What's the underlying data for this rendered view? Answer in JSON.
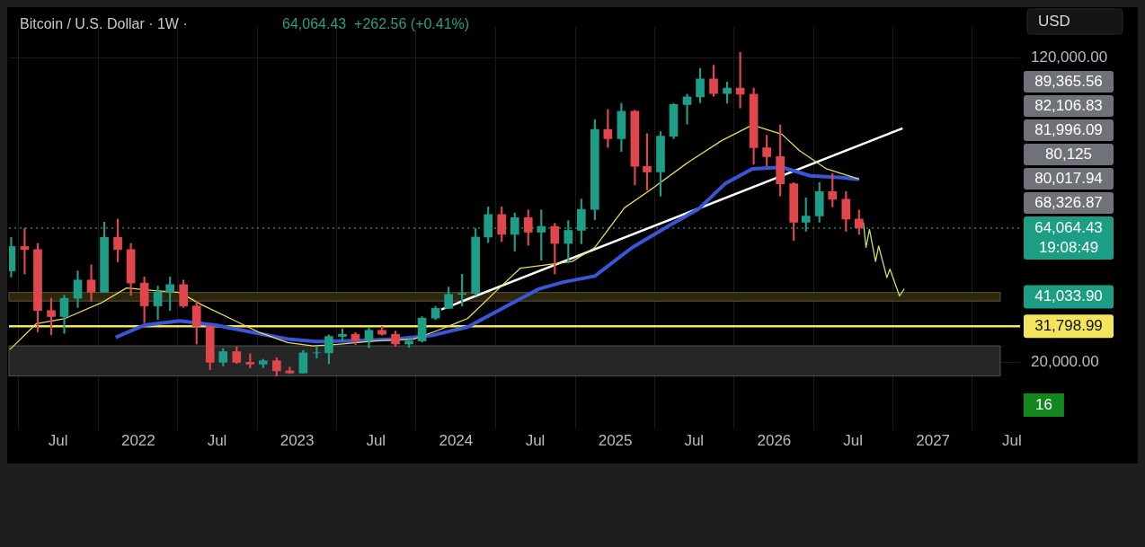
{
  "chart_data": {
    "type": "candlestick",
    "title": "Bitcoin / U.S. Dollar · 1W ·",
    "subtitle": "64,064.43  +262.56 (+0.41%)",
    "x": [
      "2021-03-15",
      "2021-04-15",
      "2021-05-15",
      "2021-06-15",
      "2021-07-15",
      "2021-08-15",
      "2021-09-15",
      "2021-10-15",
      "2021-11-15",
      "2021-12-15",
      "2022-01-15",
      "2022-02-15",
      "2022-03-15",
      "2022-04-15",
      "2022-05-15",
      "2022-06-15",
      "2022-07-15",
      "2022-08-15",
      "2022-09-15",
      "2022-10-15",
      "2022-11-15",
      "2022-12-15",
      "2023-01-15",
      "2023-02-15",
      "2023-03-15",
      "2023-04-15",
      "2023-05-15",
      "2023-06-15",
      "2023-07-15",
      "2023-08-15",
      "2023-09-15",
      "2023-10-15",
      "2023-11-15",
      "2023-12-15",
      "2024-01-15",
      "2024-02-15",
      "2024-03-15",
      "2024-04-15",
      "2024-05-15",
      "2024-06-15",
      "2024-07-15",
      "2024-08-15",
      "2024-09-15",
      "2024-10-15",
      "2024-11-15",
      "2024-12-15",
      "2025-01-15",
      "2025-02-15",
      "2025-03-15",
      "2025-04-15",
      "2025-05-15",
      "2025-06-15",
      "2025-07-15",
      "2025-08-15",
      "2025-09-15",
      "2025-10-15",
      "2025-11-15",
      "2025-12-15",
      "2026-01-15",
      "2026-02-15",
      "2026-03-15",
      "2026-04-15",
      "2026-05-15",
      "2026-06-15",
      "2026-07-15"
    ],
    "ohlc": [
      [
        50000,
        61000,
        48000,
        58000
      ],
      [
        58000,
        64000,
        49000,
        57000
      ],
      [
        57000,
        59000,
        30000,
        37000
      ],
      [
        37000,
        41000,
        29000,
        35000
      ],
      [
        35000,
        42000,
        29500,
        41000
      ],
      [
        41000,
        50000,
        38000,
        47000
      ],
      [
        47000,
        52000,
        40000,
        43000
      ],
      [
        43000,
        66000,
        43000,
        61000
      ],
      [
        61000,
        67000,
        53000,
        57000
      ],
      [
        57000,
        59000,
        42000,
        46000
      ],
      [
        46000,
        48000,
        33000,
        38500
      ],
      [
        38500,
        45000,
        34000,
        43000
      ],
      [
        43000,
        48000,
        37000,
        45500
      ],
      [
        45500,
        47000,
        38000,
        38500
      ],
      [
        38500,
        40000,
        26000,
        31800
      ],
      [
        31800,
        32000,
        17600,
        20000
      ],
      [
        20000,
        24500,
        18800,
        23500
      ],
      [
        23500,
        25000,
        19600,
        20000
      ],
      [
        20000,
        22800,
        18200,
        19400
      ],
      [
        19400,
        21000,
        18200,
        20500
      ],
      [
        20500,
        21500,
        15500,
        17200
      ],
      [
        17200,
        18400,
        16300,
        16500
      ],
      [
        16500,
        23900,
        16500,
        23100
      ],
      [
        23100,
        25200,
        21400,
        23100
      ],
      [
        23100,
        29000,
        19500,
        28500
      ],
      [
        28500,
        31000,
        26900,
        29200
      ],
      [
        29200,
        29800,
        25800,
        27200
      ],
      [
        27200,
        31400,
        24800,
        30500
      ],
      [
        30500,
        31800,
        28900,
        29200
      ],
      [
        29200,
        30200,
        25200,
        26000
      ],
      [
        26000,
        27500,
        24900,
        27000
      ],
      [
        27000,
        35000,
        26600,
        34500
      ],
      [
        34500,
        38400,
        34000,
        37700
      ],
      [
        37700,
        44700,
        37600,
        42300
      ],
      [
        42300,
        48900,
        38500,
        42600
      ],
      [
        42600,
        63900,
        41900,
        61100
      ],
      [
        61100,
        71000,
        59300,
        68500
      ],
      [
        68500,
        71000,
        59600,
        62000
      ],
      [
        62000,
        69000,
        56500,
        67500
      ],
      [
        67500,
        70000,
        58400,
        62700
      ],
      [
        62700,
        70000,
        53500,
        64600
      ],
      [
        64600,
        65600,
        49000,
        59000
      ],
      [
        59000,
        66500,
        52600,
        63300
      ],
      [
        63300,
        73600,
        58900,
        70200
      ],
      [
        70200,
        99600,
        66800,
        96400
      ],
      [
        96400,
        103000,
        90500,
        93400
      ],
      [
        93400,
        105000,
        89200,
        102400
      ],
      [
        102400,
        102700,
        78200,
        84300
      ],
      [
        84300,
        95000,
        76600,
        82500
      ],
      [
        82500,
        95700,
        74500,
        94200
      ],
      [
        94200,
        105000,
        93400,
        104600
      ],
      [
        104600,
        108000,
        98200,
        107100
      ],
      [
        107100,
        116500,
        105200,
        113000
      ],
      [
        113000,
        117500,
        107300,
        108200
      ],
      [
        108200,
        112000,
        105000,
        110000
      ],
      [
        110000,
        121700,
        103500,
        108000
      ],
      [
        108000,
        110000,
        85000,
        90400
      ],
      [
        90400,
        94500,
        84400,
        87500
      ],
      [
        87500,
        97900,
        74600,
        78600
      ],
      [
        78600,
        79000,
        60000,
        66000
      ],
      [
        66000,
        74000,
        63000,
        68000
      ],
      [
        68000,
        79000,
        66000,
        76000
      ],
      [
        76000,
        82000,
        71000,
        73500
      ],
      [
        73500,
        76000,
        63000,
        67000
      ],
      [
        67000,
        70000,
        62000,
        64064.43
      ]
    ],
    "series": [
      {
        "type": "line",
        "color": "#e8dc5a",
        "x": [
          "2021-03-12",
          "2021-05-12",
          "2021-07-17",
          "2021-10-08",
          "2021-12-05",
          "2022-02-09",
          "2022-04-06",
          "2022-05-25",
          "2022-07-31",
          "2022-10-05",
          "2022-12-10",
          "2023-02-06",
          "2023-04-04",
          "2023-07-04",
          "2023-09-25",
          "2023-11-21",
          "2024-01-28",
          "2024-04-03",
          "2024-05-28",
          "2024-09-24",
          "2024-11-15",
          "2025-01-22",
          "2025-03-21",
          "2025-06-18",
          "2025-09-03",
          "2025-11-12",
          "2026-01-19",
          "2026-03-01",
          "2026-05-01",
          "2026-07-15"
        ],
        "values": [
          24200,
          32700,
          34400,
          39500,
          44400,
          43500,
          42900,
          39000,
          34400,
          29900,
          26500,
          25400,
          25900,
          27100,
          27600,
          30500,
          34400,
          43500,
          50900,
          53100,
          57700,
          70700,
          76400,
          85700,
          92800,
          97900,
          94800,
          89400,
          83500,
          80100
        ]
      },
      {
        "type": "line",
        "color": "#3a55d6",
        "x": [
          "2021-11-10",
          "2022-01-15",
          "2022-04-06",
          "2022-06-28",
          "2022-09-18",
          "2022-12-10",
          "2023-02-15",
          "2023-05-22",
          "2023-08-15",
          "2023-11-06",
          "2024-01-28",
          "2024-04-18",
          "2024-07-10",
          "2024-09-03",
          "2024-11-15",
          "2025-02-09",
          "2025-05-04",
          "2025-07-12",
          "2025-09-10",
          "2025-11-12",
          "2026-01-19",
          "2026-03-25",
          "2026-06-06",
          "2026-07-15"
        ],
        "values": [
          28200,
          32200,
          33600,
          32200,
          29900,
          27600,
          26800,
          27100,
          27600,
          28800,
          31600,
          37800,
          44100,
          46300,
          48300,
          57700,
          64800,
          70400,
          78600,
          83500,
          84000,
          81200,
          80600,
          80000
        ]
      },
      {
        "type": "line",
        "color": "#ffffff",
        "x": [
          "2023-11-28",
          "2026-10-23"
        ],
        "values": [
          37300,
          96800
        ]
      },
      {
        "type": "line",
        "color": "#c5e06a",
        "x": [
          "2026-07-25",
          "2026-07-31",
          "2026-08-08",
          "2026-08-22",
          "2026-08-29",
          "2026-09-17",
          "2026-09-24",
          "2026-10-16",
          "2026-10-27"
        ],
        "values": [
          65900,
          57700,
          63600,
          53100,
          58200,
          47800,
          50600,
          41800,
          44100
        ]
      }
    ],
    "xlim": [
      "2021-03-10",
      "2027-07-20"
    ],
    "xticks": [
      {
        "value": "2021-07-01",
        "label": "Jul"
      },
      {
        "value": "2022-01-01",
        "label": "2022"
      },
      {
        "value": "2022-07-01",
        "label": "Jul"
      },
      {
        "value": "2023-01-01",
        "label": "2023"
      },
      {
        "value": "2023-07-01",
        "label": "Jul"
      },
      {
        "value": "2024-01-01",
        "label": "2024"
      },
      {
        "value": "2024-07-01",
        "label": "Jul"
      },
      {
        "value": "2025-01-01",
        "label": "2025"
      },
      {
        "value": "2025-07-01",
        "label": "Jul"
      },
      {
        "value": "2026-01-01",
        "label": "2026"
      },
      {
        "value": "2026-07-01",
        "label": "Jul"
      },
      {
        "value": "2027-01-01",
        "label": "2027"
      },
      {
        "value": "2027-07-01",
        "label": "Jul"
      }
    ],
    "ylim": [
      -2000,
      130000
    ],
    "yticks": [
      {
        "value": 20000,
        "label": "20,000.00"
      },
      {
        "value": 120000,
        "label": "120,000.00"
      }
    ],
    "bands": [
      {
        "axis": "y",
        "from": 15500,
        "to": 25400,
        "color": "#262626"
      },
      {
        "axis": "y",
        "from": 40100,
        "to": 42900,
        "color": "#2e2608",
        "label": "41,033.90"
      }
    ],
    "ref_lines": [
      {
        "axis": "y",
        "value": 31798.99,
        "label": "31,798.99",
        "color": "#f2e45c",
        "line_style": "solid"
      },
      {
        "axis": "y",
        "value": 64064.43,
        "label": "64,064.43\n19:08:49",
        "color": "#1b9e84",
        "line_style": "dotted"
      }
    ],
    "annotations": [
      "USD",
      "89,365.56",
      "82,106.83",
      "81,996.09",
      "80,125",
      "80,017.94",
      "68,326.87",
      "16"
    ],
    "grid": true,
    "legend": false
  }
}
